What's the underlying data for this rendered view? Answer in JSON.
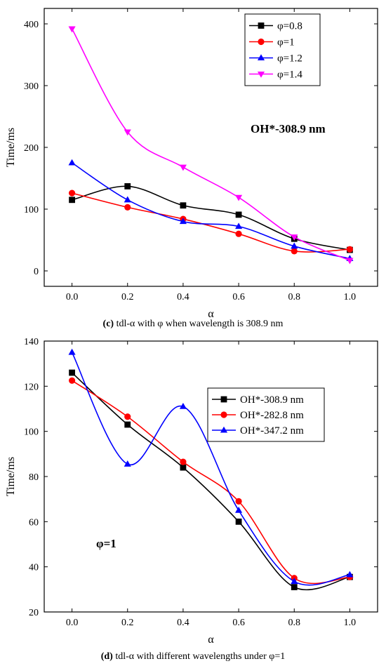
{
  "chart_data": [
    {
      "type": "scatter",
      "caption_label": "(c)",
      "caption_text": " tdl-α with φ when wavelength is 308.9 nm",
      "xlabel": "α",
      "ylabel": "Time/ms",
      "xlim": [
        -0.1,
        1.1
      ],
      "ylim": [
        -25,
        425
      ],
      "xticks": [
        0.0,
        0.2,
        0.4,
        0.6,
        0.8,
        1.0
      ],
      "xtick_labels": [
        "0.0",
        "0.2",
        "0.4",
        "0.6",
        "0.8",
        "1.0"
      ],
      "yticks": [
        0,
        100,
        200,
        300,
        400
      ],
      "ytick_labels": [
        "0",
        "100",
        "200",
        "300",
        "400"
      ],
      "annotation": "OH*-308.9 nm",
      "legend_position": "top-right",
      "x": [
        0.0,
        0.2,
        0.4,
        0.6,
        0.8,
        1.0
      ],
      "series": [
        {
          "name": "φ=0.8",
          "color": "#000000",
          "marker": "square",
          "values": [
            115,
            137,
            106,
            91,
            52,
            34
          ]
        },
        {
          "name": "φ=1",
          "color": "#ff0000",
          "marker": "circle",
          "values": [
            126,
            103,
            84,
            60,
            32,
            35
          ]
        },
        {
          "name": "φ=1.2",
          "color": "#0000ff",
          "marker": "triangle-up",
          "values": [
            175,
            115,
            80,
            72,
            40,
            20
          ]
        },
        {
          "name": "φ=1.4",
          "color": "#ff00ff",
          "marker": "triangle-down",
          "values": [
            392,
            225,
            168,
            119,
            55,
            17
          ]
        }
      ]
    },
    {
      "type": "scatter",
      "caption_label": "(d)",
      "caption_text": " tdl-α with different wavelengths under φ=1",
      "xlabel": "α",
      "ylabel": "Time/ms",
      "xlim": [
        -0.1,
        1.1
      ],
      "ylim": [
        20,
        140
      ],
      "xticks": [
        0.0,
        0.2,
        0.4,
        0.6,
        0.8,
        1.0
      ],
      "xtick_labels": [
        "0.0",
        "0.2",
        "0.4",
        "0.6",
        "0.8",
        "1.0"
      ],
      "yticks": [
        20,
        40,
        60,
        80,
        100,
        120,
        140
      ],
      "ytick_labels": [
        "20",
        "40",
        "60",
        "80",
        "100",
        "120",
        "140"
      ],
      "annotation": "φ=1",
      "legend_position": "top-right",
      "x": [
        0.0,
        0.2,
        0.4,
        0.6,
        0.8,
        1.0
      ],
      "series": [
        {
          "name": "OH*-308.9 nm",
          "color": "#000000",
          "marker": "square",
          "values": [
            126,
            103,
            84,
            60,
            31,
            35.5
          ]
        },
        {
          "name": "OH*-282.8 nm",
          "color": "#ff0000",
          "marker": "circle",
          "values": [
            122.5,
            106.5,
            86.5,
            69,
            35,
            35.5
          ]
        },
        {
          "name": "OH*-347.2 nm",
          "color": "#0000ff",
          "marker": "triangle-up",
          "values": [
            135,
            85.5,
            111,
            65,
            33.5,
            36.5
          ]
        }
      ]
    }
  ]
}
